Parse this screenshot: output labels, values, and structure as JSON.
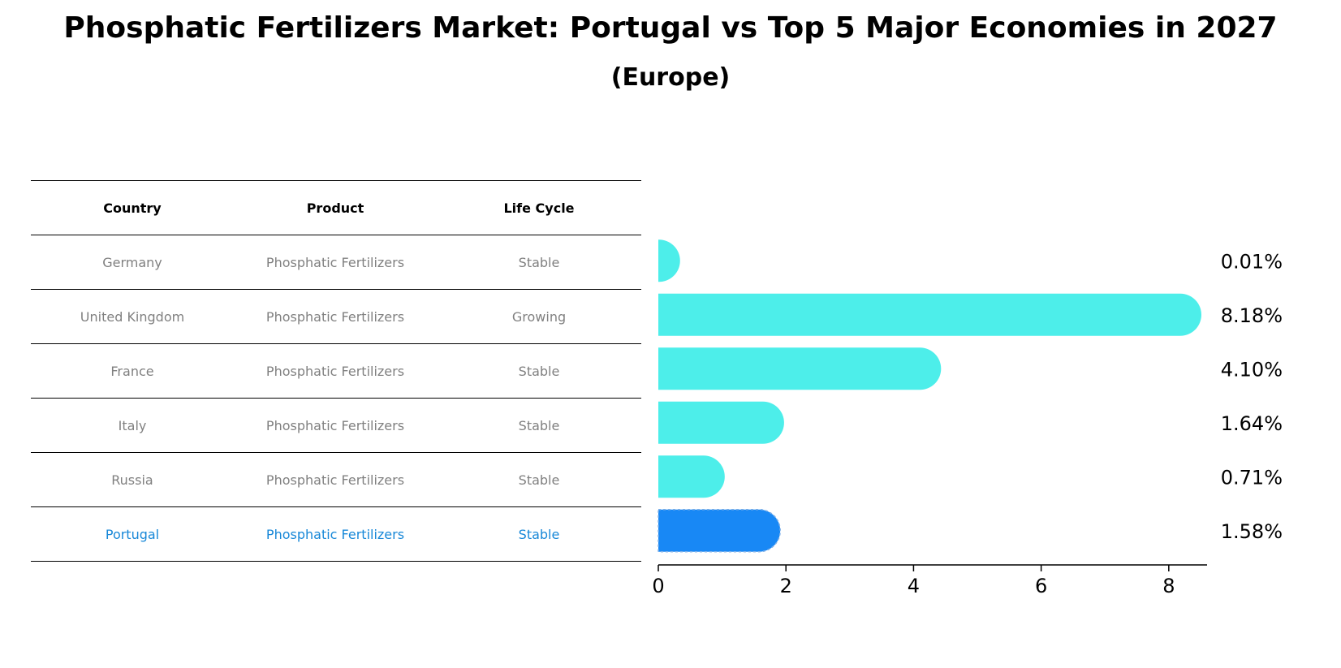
{
  "header": {
    "title": "Phosphatic Fertilizers Market: Portugal vs Top 5 Major Economies in 2027",
    "subtitle": "(Europe)"
  },
  "table": {
    "columns": [
      "Country",
      "Product",
      "Life Cycle"
    ],
    "rows": [
      {
        "country": "Germany",
        "product": "Phosphatic Fertilizers",
        "life_cycle": "Stable"
      },
      {
        "country": "United Kingdom",
        "product": "Phosphatic Fertilizers",
        "life_cycle": "Growing"
      },
      {
        "country": "France",
        "product": "Phosphatic Fertilizers",
        "life_cycle": "Stable"
      },
      {
        "country": "Italy",
        "product": "Phosphatic Fertilizers",
        "life_cycle": "Stable"
      },
      {
        "country": "Russia",
        "product": "Phosphatic Fertilizers",
        "life_cycle": "Stable"
      },
      {
        "country": "Portugal",
        "product": "Phosphatic Fertilizers",
        "life_cycle": "Stable"
      }
    ]
  },
  "chart_data": {
    "type": "bar",
    "orientation": "horizontal",
    "categories": [
      "Germany",
      "United Kingdom",
      "France",
      "Italy",
      "Russia",
      "Portugal"
    ],
    "values": [
      0.01,
      8.18,
      4.1,
      1.64,
      0.71,
      1.58
    ],
    "value_labels": [
      "0.01%",
      "8.18%",
      "4.10%",
      "1.64%",
      "0.71%",
      "1.58%"
    ],
    "highlight": "Portugal",
    "xlim": [
      0,
      8.6
    ],
    "xticks": [
      0,
      2,
      4,
      6,
      8
    ],
    "colors": {
      "default": "#4deeea",
      "highlight": "#1888f5"
    },
    "grid": false,
    "legend": "none"
  }
}
